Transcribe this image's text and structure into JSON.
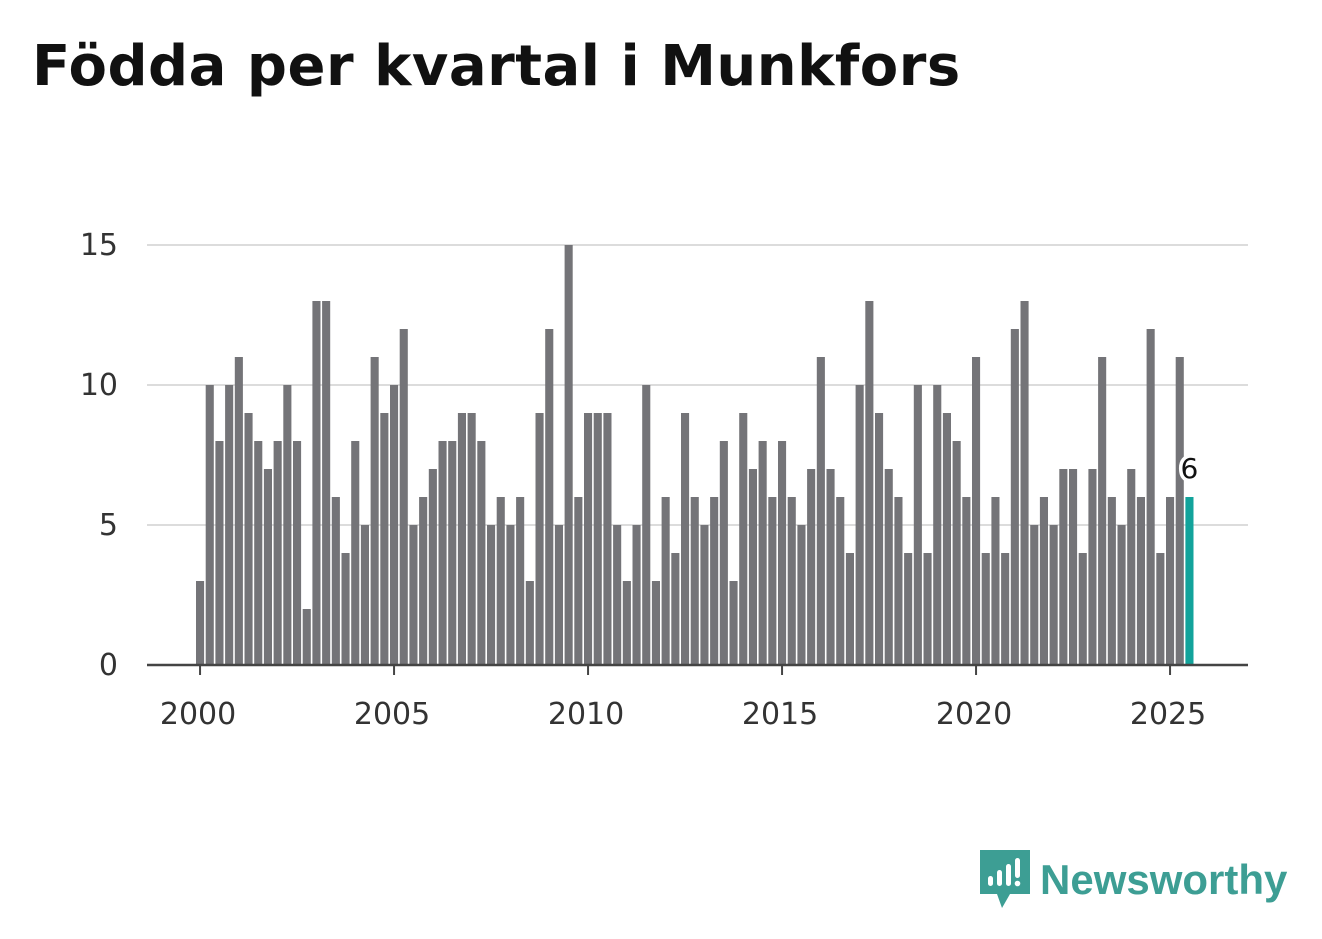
{
  "title": "Födda per kvartal i Munkfors",
  "brand": {
    "name": "Newsworthy",
    "color": "#3d9e94",
    "icon": "newsworthy-logo-icon"
  },
  "colors": {
    "bar": "#747478",
    "highlight": "#12a39b",
    "grid": "#dcdcdc",
    "axis": "#444444",
    "text": "#333333"
  },
  "chart_data": {
    "type": "bar",
    "title": "Födda per kvartal i Munkfors",
    "xlabel": "",
    "ylabel": "",
    "frequency": "quarterly",
    "start": "2000 Q1",
    "end": "2025 Q3",
    "values": [
      3,
      10,
      8,
      10,
      11,
      9,
      8,
      7,
      8,
      10,
      8,
      2,
      13,
      13,
      6,
      4,
      8,
      5,
      11,
      9,
      10,
      12,
      5,
      6,
      7,
      8,
      8,
      9,
      9,
      8,
      5,
      6,
      5,
      6,
      3,
      9,
      12,
      5,
      15,
      6,
      9,
      9,
      9,
      5,
      3,
      5,
      10,
      3,
      6,
      4,
      9,
      6,
      5,
      6,
      8,
      3,
      9,
      7,
      8,
      6,
      8,
      6,
      5,
      7,
      11,
      7,
      6,
      4,
      10,
      13,
      9,
      7,
      6,
      4,
      10,
      4,
      10,
      9,
      8,
      6,
      11,
      4,
      6,
      4,
      12,
      13,
      5,
      6,
      5,
      7,
      7,
      4,
      7,
      11,
      6,
      5,
      7,
      6,
      12,
      4,
      6,
      11,
      6
    ],
    "highlight": {
      "index": 102,
      "label": "6"
    },
    "ylim": [
      0,
      15
    ],
    "yticks": [
      "0",
      "5",
      "10",
      "15"
    ],
    "xticks": [
      {
        "year": 2000,
        "label": "2000"
      },
      {
        "year": 2005,
        "label": "2005"
      },
      {
        "year": 2010,
        "label": "2010"
      },
      {
        "year": 2015,
        "label": "2015"
      },
      {
        "year": 2020,
        "label": "2020"
      },
      {
        "year": 2025,
        "label": "2025"
      }
    ],
    "grid": true,
    "legend": "none"
  }
}
